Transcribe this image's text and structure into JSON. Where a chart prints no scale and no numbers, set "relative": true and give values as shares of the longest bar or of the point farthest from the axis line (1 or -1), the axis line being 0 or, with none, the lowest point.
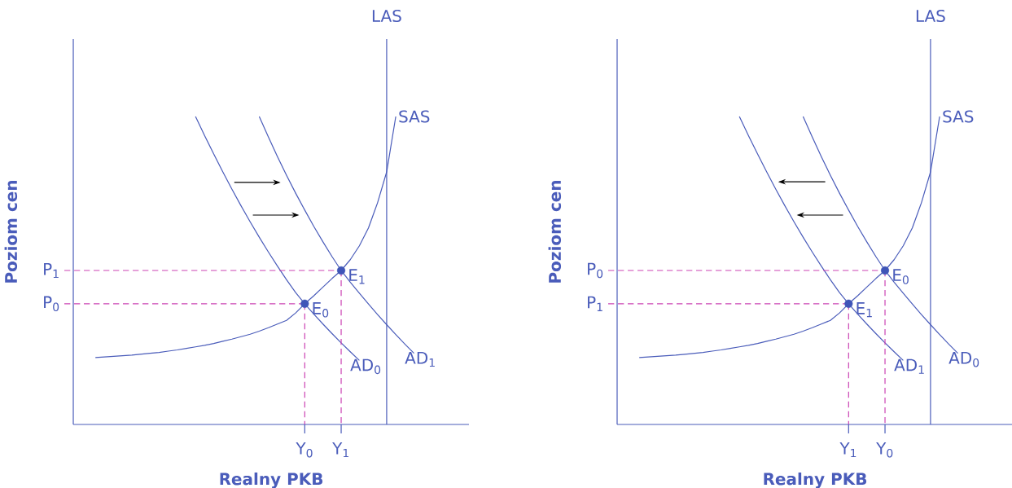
{
  "chart_data": [
    {
      "type": "line",
      "relative": true,
      "xlabel": "Realny PKB",
      "ylabel": "Poziom cen",
      "categories": [
        null,
        null,
        null,
        null,
        null,
        null,
        null,
        null,
        null,
        null,
        null,
        null,
        null,
        null,
        null,
        null,
        null,
        null,
        null,
        null,
        null,
        null,
        null,
        null,
        "Y$_{0}$",
        null,
        null,
        null,
        "Y$_{1}$",
        null,
        null,
        null,
        null,
        null,
        null,
        null,
        null,
        null,
        null,
        null,
        null,
        null
      ],
      "series": [
        {
          "name": "AD$_{0}$",
          "color": "#4a5cba",
          "values": [
            null,
            null,
            null,
            null,
            null,
            null,
            null,
            null,
            null,
            null,
            null,
            null,
            1.0,
            0.938,
            0.878,
            0.82,
            0.764,
            0.71,
            0.658,
            0.608,
            0.56,
            0.514,
            0.47,
            0.428,
            0.392,
            0.358,
            0.326,
            0.295,
            0.265,
            0.236,
            0.208,
            null,
            null,
            null,
            null,
            null,
            null,
            null,
            null,
            null,
            null,
            null
          ]
        },
        {
          "name": "AD$_{1}$",
          "color": "#4a5cba",
          "values": [
            null,
            null,
            null,
            null,
            null,
            null,
            null,
            null,
            null,
            null,
            null,
            null,
            null,
            null,
            null,
            null,
            null,
            null,
            null,
            1.0,
            0.934,
            0.87,
            0.809,
            0.751,
            0.696,
            0.643,
            0.593,
            0.545,
            0.5,
            0.462,
            0.426,
            0.391,
            0.357,
            0.324,
            0.292,
            0.261,
            0.231,
            null,
            null,
            null,
            null,
            null
          ]
        },
        {
          "name": "SAS",
          "color": "#4a5cba",
          "values": [
            null,
            0.217,
            0.219,
            0.221,
            0.223,
            0.225,
            0.228,
            0.231,
            0.234,
            0.238,
            0.242,
            0.247,
            0.252,
            0.257,
            0.263,
            0.27,
            0.277,
            0.285,
            0.293,
            0.303,
            0.314,
            0.326,
            0.338,
            0.362,
            0.392,
            0.418,
            0.446,
            0.474,
            0.5,
            0.535,
            0.58,
            0.638,
            0.72,
            0.82,
            1.0,
            null,
            null,
            null,
            null,
            null,
            null,
            null
          ]
        },
        {
          "type": "scatter",
          "color": "#3f55b8",
          "marker": "circle",
          "values": [
            null,
            null,
            null,
            null,
            null,
            null,
            null,
            null,
            null,
            null,
            null,
            null,
            null,
            null,
            null,
            null,
            null,
            null,
            null,
            null,
            null,
            null,
            null,
            null,
            0.392,
            null,
            null,
            null,
            0.5,
            null,
            null,
            null,
            null,
            null,
            null,
            null,
            null,
            null,
            null,
            null,
            null,
            null
          ]
        }
      ],
      "ref_lines": [
        {
          "axis": "y",
          "value": 0.5,
          "label": "P$_{1}$",
          "color": "#cc44b4",
          "line_style": "dashed"
        },
        {
          "axis": "y",
          "value": 0.392,
          "label": "P$_{0}$",
          "color": "#cc44b4",
          "line_style": "dashed"
        }
      ],
      "annotations": [
        "LAS",
        {
          "text": "E$_{0}$",
          "x": "Y$_{0}$",
          "y": 0.392
        },
        {
          "text": "E$_{1}$",
          "x": "Y$_{1}$",
          "y": 0.5
        }
      ]
    },
    {
      "type": "line",
      "relative": true,
      "xlabel": "Realny PKB",
      "ylabel": "Poziom cen",
      "categories": [
        null,
        null,
        null,
        null,
        null,
        null,
        null,
        null,
        null,
        null,
        null,
        null,
        null,
        null,
        null,
        null,
        null,
        null,
        null,
        null,
        null,
        null,
        null,
        null,
        "Y$_{1}$",
        null,
        null,
        null,
        "Y$_{0}$",
        null,
        null,
        null,
        null,
        null,
        null,
        null,
        null,
        null,
        null,
        null,
        null,
        null
      ],
      "series": [
        {
          "name": "AD$_{1}$",
          "color": "#4a5cba",
          "values": [
            null,
            null,
            null,
            null,
            null,
            null,
            null,
            null,
            null,
            null,
            null,
            null,
            1.0,
            0.938,
            0.878,
            0.82,
            0.764,
            0.71,
            0.658,
            0.608,
            0.56,
            0.514,
            0.47,
            0.428,
            0.392,
            0.358,
            0.326,
            0.295,
            0.265,
            0.236,
            0.208,
            null,
            null,
            null,
            null,
            null,
            null,
            null,
            null,
            null,
            null,
            null
          ]
        },
        {
          "name": "AD$_{0}$",
          "color": "#4a5cba",
          "values": [
            null,
            null,
            null,
            null,
            null,
            null,
            null,
            null,
            null,
            null,
            null,
            null,
            null,
            null,
            null,
            null,
            null,
            null,
            null,
            1.0,
            0.934,
            0.87,
            0.809,
            0.751,
            0.696,
            0.643,
            0.593,
            0.545,
            0.5,
            0.462,
            0.426,
            0.391,
            0.357,
            0.324,
            0.292,
            0.261,
            0.231,
            null,
            null,
            null,
            null,
            null
          ]
        },
        {
          "name": "SAS",
          "color": "#4a5cba",
          "values": [
            null,
            0.217,
            0.219,
            0.221,
            0.223,
            0.225,
            0.228,
            0.231,
            0.234,
            0.238,
            0.242,
            0.247,
            0.252,
            0.257,
            0.263,
            0.27,
            0.277,
            0.285,
            0.293,
            0.303,
            0.314,
            0.326,
            0.338,
            0.362,
            0.392,
            0.418,
            0.446,
            0.474,
            0.5,
            0.535,
            0.58,
            0.638,
            0.72,
            0.82,
            1.0,
            null,
            null,
            null,
            null,
            null,
            null,
            null
          ]
        },
        {
          "type": "scatter",
          "color": "#3f55b8",
          "marker": "circle",
          "values": [
            null,
            null,
            null,
            null,
            null,
            null,
            null,
            null,
            null,
            null,
            null,
            null,
            null,
            null,
            null,
            null,
            null,
            null,
            null,
            null,
            null,
            null,
            null,
            null,
            0.392,
            null,
            null,
            null,
            0.5,
            null,
            null,
            null,
            null,
            null,
            null,
            null,
            null,
            null,
            null,
            null,
            null,
            null
          ]
        }
      ],
      "ref_lines": [
        {
          "axis": "y",
          "value": 0.5,
          "label": "P$_{0}$",
          "color": "#cc44b4",
          "line_style": "dashed"
        },
        {
          "axis": "y",
          "value": 0.392,
          "label": "P$_{1}$",
          "color": "#cc44b4",
          "line_style": "dashed"
        }
      ],
      "annotations": [
        "LAS",
        {
          "text": "E$_{1}$",
          "x": "Y$_{1}$",
          "y": 0.392
        },
        {
          "text": "E$_{0}$",
          "x": "Y$_{0}$",
          "y": 0.5
        }
      ]
    }
  ]
}
